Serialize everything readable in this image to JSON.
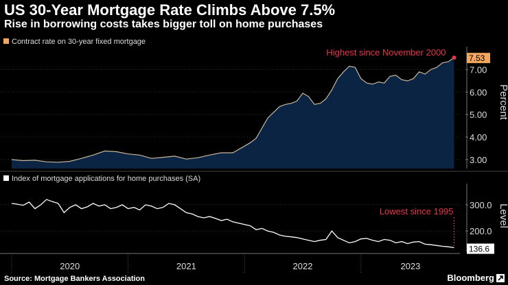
{
  "header": {
    "title": "US 30-Year Mortgage Rate Climbs Above 7.5%",
    "subtitle": "Rise in borrowing costs takes bigger toll on home purchases"
  },
  "footer": {
    "source": "Source: Mortgage Bankers Association",
    "brand": "Bloomberg"
  },
  "colors": {
    "background": "#000000",
    "rate_line": "#c9b89a",
    "rate_fill": "#0c2444",
    "rate_legend": "#f2a65e",
    "apps_line": "#ffffff",
    "annotation": "#e8334a",
    "axis": "#777777",
    "grid": "#333333"
  },
  "chart_data": [
    {
      "type": "area",
      "title": "Contract rate on 30-year fixed mortgage",
      "legend": "Contract rate on 30-year fixed mortgage",
      "ylabel": "Percent",
      "ylim": [
        2.6,
        7.9
      ],
      "yticks": [
        "3.00",
        "4.00",
        "5.00",
        "6.00",
        "7.00"
      ],
      "ytick_values": [
        3,
        4,
        5,
        6,
        7
      ],
      "x": [
        2020.0,
        2020.1,
        2020.2,
        2020.3,
        2020.4,
        2020.5,
        2020.6,
        2020.7,
        2020.8,
        2020.9,
        2021.0,
        2021.1,
        2021.2,
        2021.3,
        2021.4,
        2021.5,
        2021.6,
        2021.7,
        2021.8,
        2021.9,
        2022.0,
        2022.05,
        2022.1,
        2022.15,
        2022.2,
        2022.25,
        2022.3,
        2022.35,
        2022.4,
        2022.45,
        2022.5,
        2022.55,
        2022.6,
        2022.65,
        2022.7,
        2022.75,
        2022.8,
        2022.85,
        2022.9,
        2022.95,
        2023.0,
        2023.05,
        2023.1,
        2023.15,
        2023.2,
        2023.25,
        2023.3,
        2023.35,
        2023.4,
        2023.45,
        2023.5,
        2023.55,
        2023.6,
        2023.65,
        2023.7,
        2023.75,
        2023.8
      ],
      "values": [
        3.0,
        2.95,
        2.97,
        2.9,
        2.88,
        2.92,
        3.05,
        3.2,
        3.38,
        3.35,
        3.25,
        3.2,
        3.05,
        3.1,
        3.15,
        3.02,
        3.08,
        3.2,
        3.3,
        3.3,
        3.6,
        3.75,
        3.95,
        4.4,
        4.85,
        5.1,
        5.35,
        5.45,
        5.5,
        5.6,
        5.95,
        5.8,
        5.45,
        5.5,
        5.7,
        6.1,
        6.6,
        6.9,
        7.15,
        7.1,
        6.6,
        6.4,
        6.35,
        6.45,
        6.4,
        6.7,
        6.75,
        6.55,
        6.5,
        6.6,
        6.9,
        6.8,
        7.0,
        7.1,
        7.3,
        7.35,
        7.53
      ],
      "last_value_label": "7.53",
      "annotation": "Highest since November 2000"
    },
    {
      "type": "line",
      "title": "Index of mortgage applications for home purchases (SA)",
      "legend": "Index of mortgage applications for home purchases (SA)",
      "ylabel": "Level",
      "ylim": [
        125,
        370
      ],
      "yticks": [
        "300.0",
        "200.0"
      ],
      "ytick_values": [
        300,
        200
      ],
      "x": [
        2020.0,
        2020.05,
        2020.1,
        2020.15,
        2020.2,
        2020.25,
        2020.3,
        2020.35,
        2020.4,
        2020.45,
        2020.5,
        2020.55,
        2020.6,
        2020.65,
        2020.7,
        2020.75,
        2020.8,
        2020.85,
        2020.9,
        2020.95,
        2021.0,
        2021.05,
        2021.1,
        2021.15,
        2021.2,
        2021.25,
        2021.3,
        2021.35,
        2021.4,
        2021.45,
        2021.5,
        2021.55,
        2021.6,
        2021.65,
        2021.7,
        2021.75,
        2021.8,
        2021.85,
        2021.9,
        2021.95,
        2022.0,
        2022.05,
        2022.1,
        2022.15,
        2022.2,
        2022.25,
        2022.3,
        2022.35,
        2022.4,
        2022.45,
        2022.5,
        2022.55,
        2022.6,
        2022.65,
        2022.7,
        2022.75,
        2022.8,
        2022.85,
        2022.9,
        2022.95,
        2023.0,
        2023.05,
        2023.1,
        2023.15,
        2023.2,
        2023.25,
        2023.3,
        2023.35,
        2023.4,
        2023.45,
        2023.5,
        2023.55,
        2023.6,
        2023.65,
        2023.7,
        2023.75,
        2023.8
      ],
      "values": [
        305,
        302,
        298,
        310,
        285,
        300,
        320,
        312,
        305,
        270,
        290,
        300,
        285,
        292,
        305,
        295,
        300,
        285,
        290,
        300,
        285,
        290,
        280,
        300,
        295,
        285,
        290,
        305,
        300,
        285,
        270,
        265,
        255,
        250,
        255,
        248,
        240,
        245,
        235,
        230,
        225,
        220,
        205,
        210,
        200,
        195,
        185,
        180,
        178,
        175,
        170,
        165,
        160,
        165,
        168,
        200,
        175,
        165,
        155,
        160,
        170,
        172,
        165,
        160,
        168,
        165,
        155,
        160,
        152,
        158,
        160,
        150,
        148,
        145,
        142,
        140,
        136.6
      ],
      "last_value_label": "136.6",
      "annotation": "Lowest since 1995"
    }
  ],
  "x_axis": {
    "labels": [
      "2020",
      "2021",
      "2022",
      "2023"
    ],
    "label_values": [
      2020.0,
      2021.0,
      2022.0,
      2023.0
    ],
    "xlim": [
      2019.9,
      2023.85
    ]
  }
}
